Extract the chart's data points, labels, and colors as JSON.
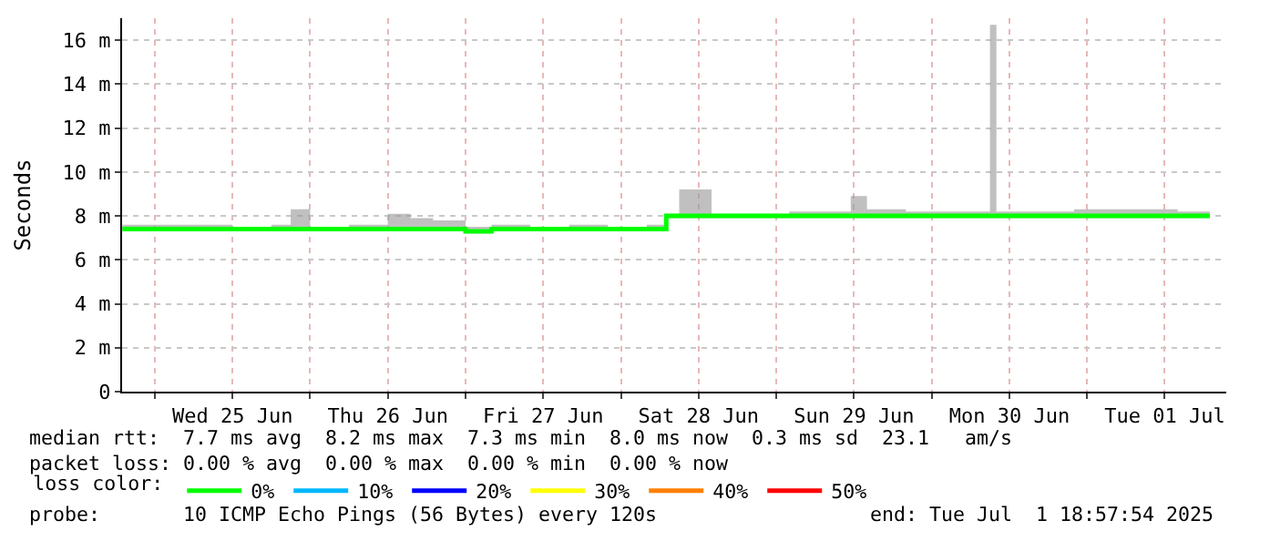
{
  "chart_data": {
    "type": "step",
    "ylabel": "Seconds",
    "xlim": [
      "2025-06-24T18:57",
      "2025-07-01T21:30"
    ],
    "xticks": [
      {
        "value": "2025-06-25T00:00",
        "label": null
      },
      {
        "value": "2025-06-25T12:00",
        "label": "Wed 25 Jun"
      },
      {
        "value": "2025-06-26T00:00",
        "label": null
      },
      {
        "value": "2025-06-26T12:00",
        "label": "Thu 26 Jun"
      },
      {
        "value": "2025-06-27T00:00",
        "label": null
      },
      {
        "value": "2025-06-27T12:00",
        "label": "Fri 27 Jun"
      },
      {
        "value": "2025-06-28T00:00",
        "label": null
      },
      {
        "value": "2025-06-28T12:00",
        "label": "Sat 28 Jun"
      },
      {
        "value": "2025-06-29T00:00",
        "label": null
      },
      {
        "value": "2025-06-29T12:00",
        "label": "Sun 29 Jun"
      },
      {
        "value": "2025-06-30T00:00",
        "label": null
      },
      {
        "value": "2025-06-30T12:00",
        "label": "Mon 30 Jun"
      },
      {
        "value": "2025-07-01T00:00",
        "label": null
      },
      {
        "value": "2025-07-01T12:00",
        "label": "Tue 01 Jul"
      }
    ],
    "ylim": [
      0,
      17
    ],
    "yticks": [
      0,
      {
        "value": 2,
        "label": "2 m"
      },
      {
        "value": 4,
        "label": "4 m"
      },
      {
        "value": 6,
        "label": "6 m"
      },
      {
        "value": 8,
        "label": "8 m"
      },
      {
        "value": 10,
        "label": "10 m"
      },
      {
        "value": 12,
        "label": "12 m"
      },
      {
        "value": 14,
        "label": "14 m"
      },
      {
        "value": 16,
        "label": "16 m"
      }
    ],
    "grid": true,
    "legend": "bottom",
    "legend_title": "loss color:",
    "line_style": "solid",
    "marker": "none",
    "x": [
      "2025-06-24T19:00",
      "2025-06-25T00:00",
      "2025-06-25T06:00",
      "2025-06-25T12:00",
      "2025-06-25T18:00",
      "2025-06-25T21:00",
      "2025-06-26T00:00",
      "2025-06-26T06:00",
      "2025-06-26T12:00",
      "2025-06-26T15:30",
      "2025-06-26T19:00",
      "2025-06-27T00:00",
      "2025-06-27T04:00",
      "2025-06-27T10:00",
      "2025-06-27T16:00",
      "2025-06-27T22:00",
      "2025-06-28T04:00",
      "2025-06-28T07:00",
      "2025-06-28T09:00",
      "2025-06-28T14:00",
      "2025-06-28T20:00",
      "2025-06-29T02:00",
      "2025-06-29T08:00",
      "2025-06-29T11:30",
      "2025-06-29T14:00",
      "2025-06-29T20:00",
      "2025-06-30T02:00",
      "2025-06-30T09:00",
      "2025-06-30T10:00",
      "2025-06-30T16:00",
      "2025-06-30T22:00",
      "2025-07-01T04:00",
      "2025-07-01T09:00",
      "2025-07-01T14:00",
      "2025-07-01T18:57"
    ],
    "series": [
      {
        "name": "0%",
        "color": "#00ff00",
        "values": [
          7.4,
          7.4,
          7.4,
          7.4,
          7.4,
          7.4,
          7.4,
          7.4,
          7.4,
          7.4,
          7.4,
          7.3,
          7.4,
          7.4,
          7.4,
          7.4,
          7.4,
          8.0,
          8.0,
          8.0,
          8.0,
          8.0,
          8.0,
          8.0,
          8.0,
          8.0,
          8.0,
          8.0,
          8.0,
          8.0,
          8.0,
          8.0,
          8.0,
          8.0,
          8.0
        ],
        "lower": [
          7.3,
          7.3,
          7.3,
          7.3,
          7.3,
          7.3,
          7.3,
          7.3,
          7.3,
          7.3,
          7.3,
          7.2,
          7.3,
          7.3,
          7.3,
          7.3,
          7.3,
          7.9,
          7.9,
          7.9,
          7.9,
          7.9,
          7.9,
          7.9,
          7.9,
          7.9,
          7.9,
          7.9,
          7.9,
          7.9,
          7.9,
          7.9,
          7.9,
          7.9,
          7.9
        ],
        "upper": [
          7.6,
          7.6,
          7.6,
          7.5,
          7.6,
          8.3,
          7.5,
          7.6,
          8.1,
          7.9,
          7.8,
          7.5,
          7.6,
          7.5,
          7.6,
          7.5,
          7.6,
          8.1,
          9.2,
          8.1,
          8.1,
          8.2,
          8.2,
          8.9,
          8.3,
          8.2,
          8.2,
          16.7,
          8.2,
          8.2,
          8.3,
          8.3,
          8.3,
          8.2,
          8.2
        ]
      },
      {
        "name": "10%",
        "color": "#00b8ff",
        "values": [
          null,
          null,
          null,
          null,
          null,
          null,
          null,
          null,
          null,
          null,
          null,
          null,
          null,
          null,
          null,
          null,
          null,
          null,
          null,
          null,
          null,
          null,
          null,
          null,
          null,
          null,
          null,
          null,
          null,
          null,
          null,
          null,
          null,
          null,
          null
        ]
      },
      {
        "name": "20%",
        "color": "#0000ff",
        "values": [
          null,
          null,
          null,
          null,
          null,
          null,
          null,
          null,
          null,
          null,
          null,
          null,
          null,
          null,
          null,
          null,
          null,
          null,
          null,
          null,
          null,
          null,
          null,
          null,
          null,
          null,
          null,
          null,
          null,
          null,
          null,
          null,
          null,
          null,
          null
        ]
      },
      {
        "name": "30%",
        "color": "#ffff00",
        "values": [
          null,
          null,
          null,
          null,
          null,
          null,
          null,
          null,
          null,
          null,
          null,
          null,
          null,
          null,
          null,
          null,
          null,
          null,
          null,
          null,
          null,
          null,
          null,
          null,
          null,
          null,
          null,
          null,
          null,
          null,
          null,
          null,
          null,
          null,
          null
        ]
      },
      {
        "name": "40%",
        "color": "#ff8000",
        "values": [
          null,
          null,
          null,
          null,
          null,
          null,
          null,
          null,
          null,
          null,
          null,
          null,
          null,
          null,
          null,
          null,
          null,
          null,
          null,
          null,
          null,
          null,
          null,
          null,
          null,
          null,
          null,
          null,
          null,
          null,
          null,
          null,
          null,
          null,
          null
        ]
      },
      {
        "name": "50%",
        "color": "#ff0000",
        "values": [
          null,
          null,
          null,
          null,
          null,
          null,
          null,
          null,
          null,
          null,
          null,
          null,
          null,
          null,
          null,
          null,
          null,
          null,
          null,
          null,
          null,
          null,
          null,
          null,
          null,
          null,
          null,
          null,
          null,
          null,
          null,
          null,
          null,
          null,
          null
        ]
      }
    ],
    "annotations": [
      "median rtt:  7.7 ms avg  8.2 ms max  7.3 ms min  8.0 ms now  0.3 ms sd  23.1   am/s",
      "packet loss: 0.00 % avg  0.00 % max  0.00 % min  0.00 % now",
      "probe:       10 ICMP Echo Pings (56 Bytes) every 120s                  end: Tue Jul  1 18:57:54 2025"
    ]
  }
}
